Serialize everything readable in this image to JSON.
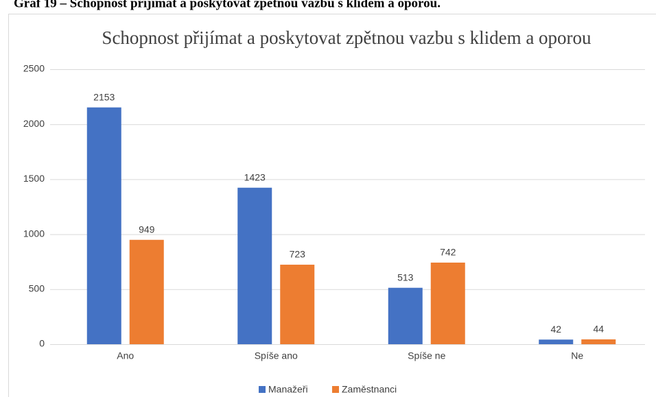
{
  "caption": "Graf 19 – Schopnost přijímat a poskytovat zpětnou vazbu s klidem a oporou.",
  "chart_data": {
    "type": "bar",
    "title": "Schopnost přijímat a poskytovat zpětnou vazbu s klidem a oporou",
    "categories": [
      "Ano",
      "Spíše ano",
      "Spíše ne",
      "Ne"
    ],
    "series": [
      {
        "name": "Manažeři",
        "color": "#4472c4",
        "values": [
          2153,
          1423,
          513,
          42
        ]
      },
      {
        "name": "Zaměstnanci",
        "color": "#ed7d31",
        "values": [
          949,
          723,
          742,
          44
        ]
      }
    ],
    "ylim": [
      0,
      2500
    ],
    "yticks": [
      0,
      500,
      1000,
      1500,
      2000,
      2500
    ],
    "grid": true,
    "legend": "bottom"
  }
}
